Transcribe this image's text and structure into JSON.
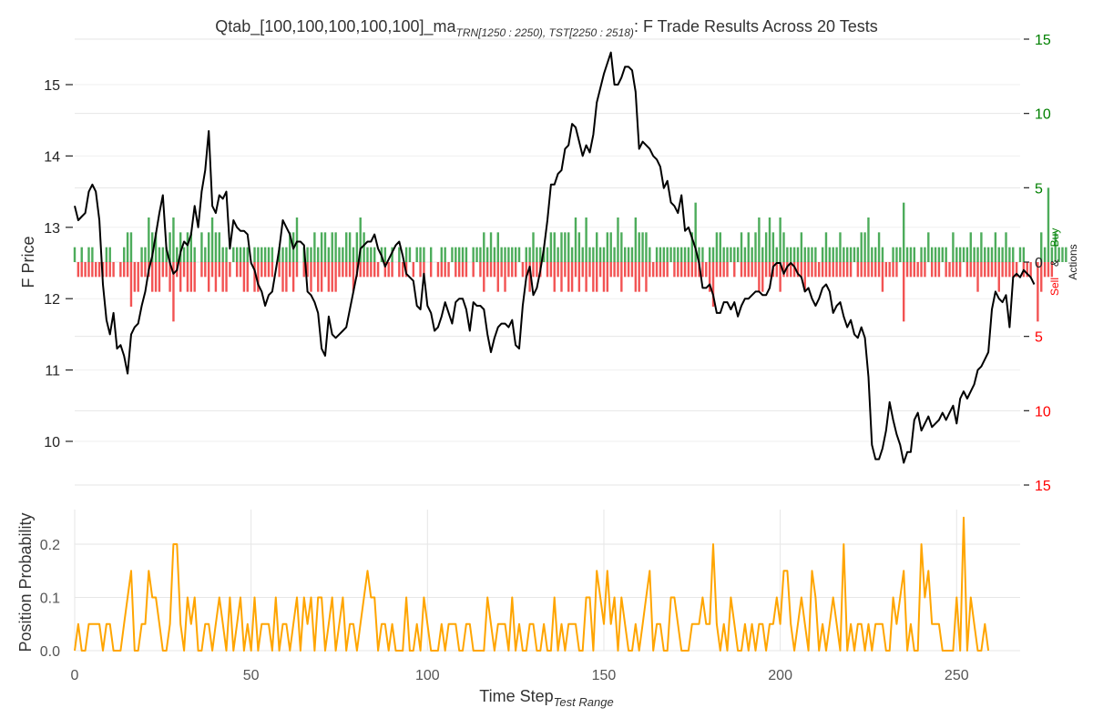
{
  "title": {
    "prefix": "Qtab_[100,100,100,100,100]_ma",
    "subscript": "TRN[1250 : 2250), TST[2250 : 2518)",
    "suffix": ": F Trade Results Across 20 Tests"
  },
  "colors": {
    "price": "#000000",
    "buy": "#2e9e3e",
    "sell": "#f03535",
    "prob": "#ffa500",
    "grid": "#e6e6e6",
    "text": "#333333",
    "axis_right_top": "#008000",
    "axis_right_bottom": "#ff0000"
  },
  "axes": {
    "price_ylabel": "F Price",
    "actions_label_sell": "Sell",
    "actions_label_and": "&",
    "actions_label_buy": "Buy",
    "actions_label_title": "Actions",
    "prob_ylabel": "Position Probability",
    "xlabel_main": "Time Step",
    "xlabel_sub": "Test Range",
    "price_ticks": [
      "10",
      "11",
      "12",
      "13",
      "14",
      "15"
    ],
    "action_ticks": [
      "15",
      "10",
      "5",
      "0",
      "5",
      "10",
      "15"
    ],
    "prob_ticks": [
      "0.0",
      "0.1",
      "0.2"
    ],
    "x_ticks": [
      "0",
      "50",
      "100",
      "150",
      "200",
      "250"
    ]
  },
  "chart_data": [
    {
      "type": "line",
      "name": "price",
      "xlim": [
        0,
        268
      ],
      "ylim": [
        9.5,
        15.6
      ],
      "x_start": 0,
      "values": [
        13.3,
        13.1,
        13.15,
        13.2,
        13.5,
        13.6,
        13.5,
        13.1,
        12.2,
        11.7,
        11.5,
        11.8,
        11.3,
        11.35,
        11.2,
        10.95,
        11.5,
        11.6,
        11.65,
        11.9,
        12.1,
        12.4,
        12.6,
        12.9,
        13.2,
        13.45,
        12.7,
        12.5,
        12.35,
        12.4,
        12.65,
        12.8,
        12.75,
        12.9,
        13.3,
        13.0,
        13.5,
        13.8,
        14.35,
        13.3,
        13.2,
        13.45,
        13.4,
        13.5,
        12.7,
        13.1,
        13.0,
        12.95,
        12.95,
        12.9,
        12.5,
        12.4,
        12.2,
        12.1,
        11.9,
        12.05,
        12.1,
        12.4,
        12.7,
        13.1,
        13.0,
        12.9,
        12.7,
        12.8,
        12.8,
        12.75,
        12.1,
        12.05,
        11.95,
        11.8,
        11.3,
        11.2,
        11.75,
        11.5,
        11.45,
        11.5,
        11.55,
        11.6,
        11.85,
        12.1,
        12.35,
        12.7,
        12.75,
        12.8,
        12.8,
        12.9,
        12.7,
        12.6,
        12.45,
        12.55,
        12.65,
        12.75,
        12.8,
        12.6,
        12.35,
        12.3,
        12.25,
        11.9,
        11.85,
        12.35,
        11.9,
        11.8,
        11.55,
        11.6,
        11.75,
        11.95,
        11.8,
        11.65,
        11.95,
        12.0,
        12.0,
        11.85,
        11.55,
        11.95,
        11.9,
        11.9,
        11.85,
        11.5,
        11.25,
        11.45,
        11.6,
        11.65,
        11.65,
        11.6,
        11.7,
        11.35,
        11.3,
        11.9,
        12.3,
        12.45,
        12.05,
        12.15,
        12.4,
        12.7,
        13.1,
        13.6,
        13.6,
        13.75,
        13.8,
        14.1,
        14.15,
        14.45,
        14.4,
        14.2,
        14.0,
        14.15,
        14.05,
        14.3,
        14.75,
        14.95,
        15.15,
        15.3,
        15.45,
        15.0,
        15.0,
        15.1,
        15.25,
        15.25,
        15.2,
        14.9,
        14.1,
        14.2,
        14.15,
        14.1,
        14.0,
        13.95,
        13.85,
        13.55,
        13.65,
        13.35,
        13.3,
        13.2,
        13.45,
        12.95,
        13.0,
        12.85,
        12.7,
        12.5,
        12.15,
        12.15,
        12.2,
        12.05,
        11.8,
        11.8,
        11.95,
        11.95,
        11.85,
        11.95,
        11.75,
        11.9,
        12.0,
        12.0,
        12.05,
        12.1,
        12.1,
        12.05,
        12.05,
        12.15,
        12.45,
        12.5,
        12.5,
        12.35,
        12.45,
        12.5,
        12.45,
        12.35,
        12.3,
        12.1,
        12.15,
        12.0,
        11.9,
        12.0,
        12.15,
        12.2,
        12.1,
        11.8,
        11.9,
        11.95,
        11.75,
        11.6,
        11.7,
        11.5,
        11.45,
        11.6,
        11.45,
        10.9,
        9.95,
        9.75,
        9.75,
        9.9,
        10.15,
        10.55,
        10.3,
        10.1,
        9.95,
        9.7,
        9.85,
        9.85,
        10.3,
        10.4,
        10.15,
        10.25,
        10.35,
        10.2,
        10.25,
        10.3,
        10.4,
        10.3,
        10.4,
        10.5,
        10.25,
        10.6,
        10.7,
        10.6,
        10.7,
        10.8,
        11.0,
        11.05,
        11.15,
        11.25,
        11.85,
        12.1,
        12.0,
        11.95,
        12.05,
        11.6,
        12.3,
        12.35,
        12.3,
        12.4,
        12.35,
        12.3,
        12.2
      ]
    },
    {
      "type": "bar",
      "name": "Buy",
      "ylim": [
        -15,
        15
      ],
      "x_start": 0,
      "values": [
        1,
        0,
        1,
        0,
        1,
        1,
        0,
        0,
        0,
        1,
        1,
        0,
        0,
        0,
        1,
        2,
        2,
        0,
        0,
        1,
        1,
        3,
        2,
        2,
        1,
        1,
        1,
        2,
        3,
        1,
        2,
        1,
        2,
        2,
        1,
        0,
        2,
        1,
        2,
        3,
        2,
        2,
        1,
        1,
        0,
        1,
        1,
        1,
        1,
        1,
        0,
        1,
        1,
        1,
        1,
        1,
        1,
        0,
        1,
        1,
        1,
        2,
        2,
        3,
        0,
        1,
        1,
        1,
        2,
        1,
        2,
        2,
        1,
        2,
        2,
        1,
        1,
        2,
        2,
        1,
        2,
        3,
        2,
        1,
        1,
        1,
        0,
        1,
        1,
        0,
        1,
        0,
        1,
        0,
        1,
        1,
        0,
        1,
        1,
        1,
        0,
        1,
        0,
        0,
        1,
        1,
        0,
        1,
        1,
        1,
        1,
        1,
        0,
        1,
        1,
        1,
        2,
        1,
        2,
        1,
        2,
        1,
        1,
        1,
        1,
        1,
        1,
        0,
        1,
        1,
        2,
        1,
        1,
        1,
        1,
        2,
        2,
        1,
        2,
        2,
        2,
        1,
        3,
        2,
        1,
        3,
        1,
        1,
        2,
        1,
        1,
        2,
        2,
        1,
        3,
        2,
        1,
        1,
        1,
        3,
        2,
        2,
        2,
        1,
        0,
        1,
        1,
        1,
        1,
        1,
        1,
        1,
        1,
        1,
        1,
        2,
        4,
        1,
        1,
        0,
        1,
        1,
        2,
        2,
        1,
        1,
        1,
        1,
        1,
        2,
        1,
        2,
        1,
        2,
        3,
        1,
        2,
        3,
        2,
        1,
        3,
        2,
        1,
        1,
        1,
        1,
        2,
        1,
        1,
        1,
        1,
        0,
        1,
        2,
        1,
        1,
        1,
        2,
        1,
        1,
        1,
        1,
        1,
        2,
        2,
        3,
        1,
        1,
        2,
        1,
        0,
        0,
        1,
        1,
        1,
        4,
        1,
        1,
        1,
        0,
        1,
        1,
        2,
        1,
        1,
        1,
        1,
        1,
        0,
        2,
        1,
        1,
        1,
        1,
        2,
        1,
        1,
        2,
        1,
        1,
        1,
        2,
        1,
        1,
        2,
        1,
        1,
        0,
        1,
        1,
        0,
        0,
        0,
        0,
        2,
        1,
        5,
        1,
        2,
        1,
        1,
        1
      ],
      "xlim": [
        0,
        268
      ]
    },
    {
      "type": "bar",
      "name": "Sell",
      "ylim": [
        -15,
        15
      ],
      "x_start": 0,
      "values": [
        0,
        1,
        1,
        1,
        1,
        1,
        1,
        1,
        1,
        1,
        1,
        1,
        0,
        1,
        1,
        1,
        3,
        2,
        2,
        1,
        1,
        1,
        2,
        2,
        2,
        1,
        1,
        2,
        4,
        1,
        2,
        1,
        2,
        2,
        2,
        0,
        1,
        1,
        2,
        1,
        2,
        1,
        2,
        2,
        1,
        0,
        1,
        1,
        2,
        2,
        0,
        2,
        2,
        1,
        1,
        1,
        1,
        0,
        1,
        2,
        2,
        1,
        2,
        1,
        0,
        1,
        1,
        2,
        1,
        2,
        2,
        1,
        2,
        2,
        2,
        1,
        1,
        1,
        1,
        2,
        1,
        1,
        1,
        1,
        1,
        1,
        1,
        0,
        1,
        1,
        1,
        0,
        1,
        1,
        1,
        0,
        1,
        0,
        1,
        1,
        0,
        1,
        0,
        1,
        1,
        1,
        1,
        0,
        1,
        1,
        1,
        1,
        0,
        1,
        0,
        1,
        2,
        1,
        1,
        1,
        2,
        1,
        2,
        1,
        1,
        1,
        0,
        1,
        1,
        2,
        1,
        1,
        1,
        0,
        1,
        1,
        2,
        1,
        2,
        1,
        2,
        2,
        1,
        2,
        1,
        2,
        1,
        2,
        2,
        1,
        2,
        2,
        1,
        1,
        1,
        2,
        1,
        1,
        1,
        2,
        2,
        1,
        2,
        1,
        1,
        1,
        1,
        1,
        1,
        0,
        1,
        1,
        1,
        1,
        1,
        1,
        1,
        1,
        1,
        1,
        2,
        3,
        1,
        1,
        1,
        1,
        0,
        1,
        0,
        1,
        1,
        1,
        1,
        1,
        2,
        2,
        1,
        1,
        1,
        1,
        2,
        1,
        1,
        1,
        1,
        1,
        1,
        2,
        1,
        1,
        1,
        1,
        1,
        1,
        1,
        1,
        1,
        1,
        1,
        1,
        1,
        0,
        1,
        1,
        1,
        1,
        1,
        1,
        1,
        2,
        1,
        1,
        1,
        1,
        0,
        4,
        1,
        1,
        1,
        1,
        1,
        1,
        0,
        1,
        1,
        1,
        0,
        1,
        1,
        1,
        1,
        1,
        0,
        1,
        1,
        1,
        2,
        1,
        1,
        1,
        1,
        1,
        2,
        1,
        1,
        1,
        1,
        1,
        0,
        1,
        1,
        1,
        0,
        4,
        2,
        1,
        1,
        1
      ]
    },
    {
      "type": "line",
      "name": "Position Probability",
      "xlim": [
        0,
        268
      ],
      "ylim": [
        0,
        0.25
      ],
      "x_start": 0,
      "values": [
        0,
        0.05,
        0,
        0,
        0.05,
        0.05,
        0.05,
        0.05,
        0,
        0.05,
        0.05,
        0,
        0,
        0,
        0.05,
        0.1,
        0.15,
        0,
        0,
        0.05,
        0.05,
        0.15,
        0.1,
        0.1,
        0.05,
        0,
        0,
        0.05,
        0.2,
        0.2,
        0.05,
        0,
        0.1,
        0.05,
        0.1,
        0,
        0,
        0.05,
        0.05,
        0,
        0.05,
        0.1,
        0.05,
        0,
        0.1,
        0,
        0.05,
        0.1,
        0,
        0.05,
        0,
        0.1,
        0,
        0.05,
        0.05,
        0.05,
        0,
        0.1,
        0,
        0.05,
        0.05,
        0,
        0.05,
        0.1,
        0,
        0.1,
        0.05,
        0.1,
        0,
        0.1,
        0.1,
        0,
        0.05,
        0.1,
        0,
        0.05,
        0.1,
        0,
        0.05,
        0.05,
        0,
        0.05,
        0.1,
        0.15,
        0.1,
        0.1,
        0,
        0.05,
        0.05,
        0,
        0.05,
        0,
        0,
        0,
        0.1,
        0,
        0,
        0.05,
        0,
        0.1,
        0.05,
        0,
        0,
        0,
        0.05,
        0,
        0.05,
        0.05,
        0.05,
        0,
        0,
        0.05,
        0.05,
        0,
        0,
        0,
        0,
        0.1,
        0.05,
        0,
        0.05,
        0.05,
        0.05,
        0,
        0.1,
        0,
        0.05,
        0,
        0,
        0.05,
        0.05,
        0,
        0,
        0.05,
        0,
        0,
        0.1,
        0,
        0.05,
        0,
        0.05,
        0.05,
        0.05,
        0,
        0,
        0.1,
        0.1,
        0,
        0.15,
        0.1,
        0.05,
        0.15,
        0.05,
        0.1,
        0,
        0.1,
        0.05,
        0,
        0,
        0.05,
        0,
        0.05,
        0.1,
        0.15,
        0,
        0.05,
        0.05,
        0,
        0,
        0.1,
        0.1,
        0.05,
        0,
        0,
        0,
        0.05,
        0.05,
        0.05,
        0.1,
        0.05,
        0.05,
        0.2,
        0.05,
        0,
        0.05,
        0,
        0.1,
        0.05,
        0,
        0,
        0.05,
        0,
        0.05,
        0,
        0.05,
        0.05,
        0,
        0.05,
        0.05,
        0.1,
        0.05,
        0.15,
        0.15,
        0.05,
        0,
        0.05,
        0.1,
        0.05,
        0,
        0.15,
        0.1,
        0,
        0.05,
        0,
        0.05,
        0.1,
        0.05,
        0,
        0.2,
        0,
        0.05,
        0,
        0.05,
        0.05,
        0,
        0.05,
        0,
        0.05,
        0.05,
        0.05,
        0,
        0,
        0.1,
        0.05,
        0.1,
        0.15,
        0,
        0.05,
        0,
        0,
        0.2,
        0.1,
        0.15,
        0.05,
        0.05,
        0.05,
        0,
        0,
        0,
        0,
        0.1,
        0,
        0.25,
        0,
        0.1,
        0.05,
        0,
        0,
        0.05,
        0
      ]
    }
  ]
}
